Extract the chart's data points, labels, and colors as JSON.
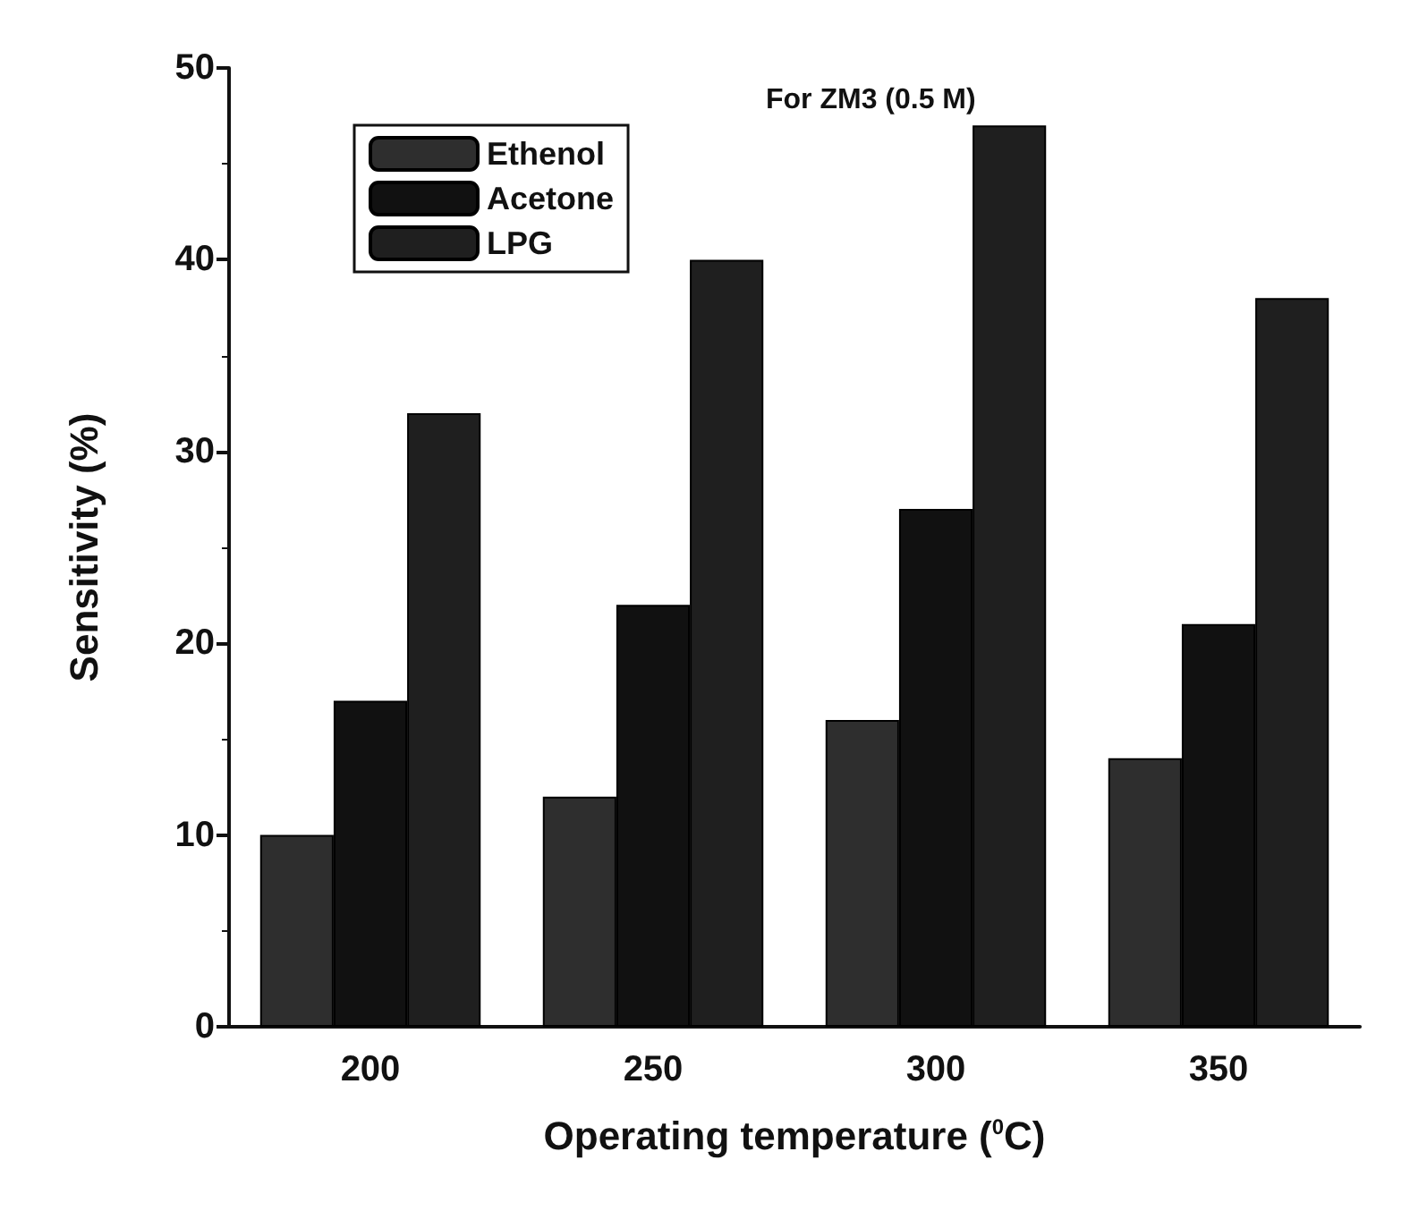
{
  "chart_data": {
    "type": "bar",
    "xlabel": "Operating temperature ($^{0}$C)",
    "ylabel": "Sensitivity (%)",
    "categories": [
      "200",
      "250",
      "300",
      "350"
    ],
    "series": [
      {
        "name": "Ethenol",
        "color": "#2e2e2e",
        "values": [
          10,
          12,
          16,
          14
        ]
      },
      {
        "name": "Acetone",
        "color": "#111111",
        "values": [
          17,
          22,
          27,
          21
        ]
      },
      {
        "name": "LPG",
        "color": "#1f1f1f",
        "values": [
          32,
          40,
          47,
          38
        ]
      }
    ],
    "annotations": [
      "For ZM3 (0.5 M)"
    ],
    "ylim": [
      0,
      50
    ],
    "yticks": [
      0,
      10,
      20,
      30,
      40,
      50
    ],
    "grid": false,
    "legend": "top left"
  }
}
